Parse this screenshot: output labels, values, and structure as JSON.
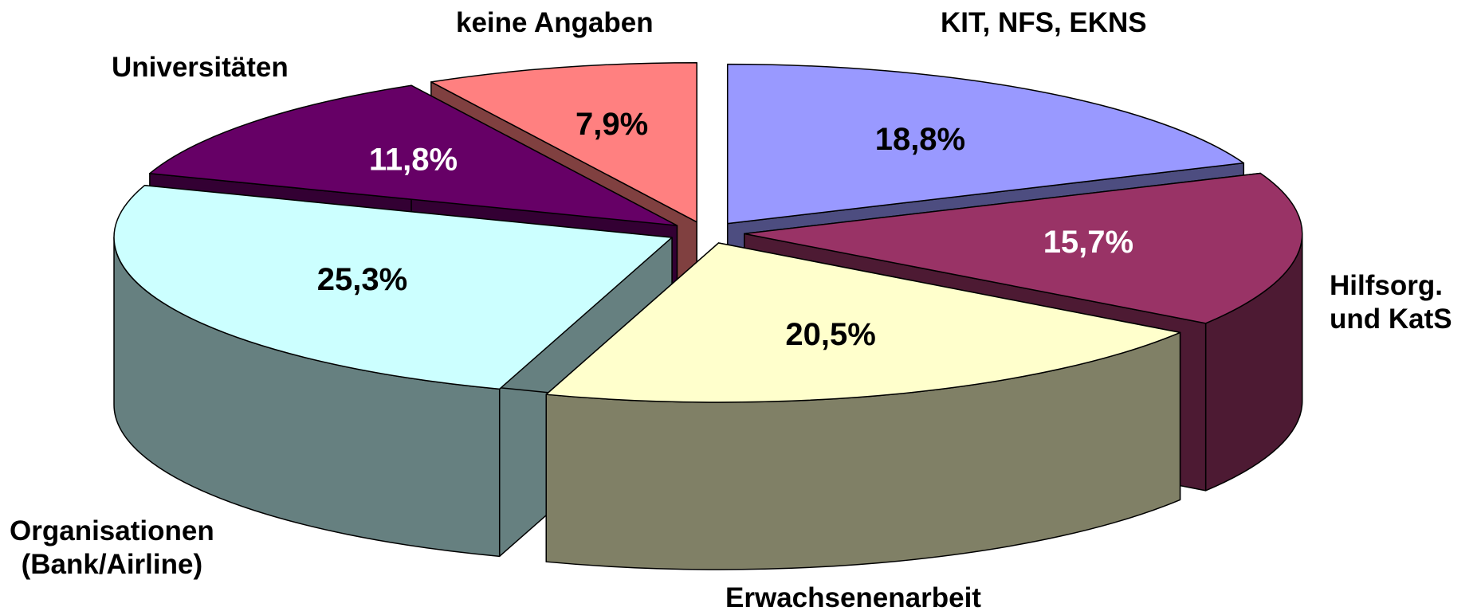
{
  "chart_data": {
    "type": "pie3d",
    "categories": [
      "KIT, NFS,  EKNS",
      "Hilfsorg.\nund KatS",
      "Erwachsenenarbeit",
      "Organisationen\n(Bank/Airline)",
      "Universitäten",
      "keine Angaben"
    ],
    "values": [
      18.8,
      15.7,
      20.5,
      25.3,
      11.8,
      7.9
    ],
    "value_labels": [
      "18,8%",
      "15,7%",
      "20,5%",
      "25,3%",
      "11,8%",
      "7,9%"
    ],
    "colors": [
      "#9999ff",
      "#993366",
      "#ffffcc",
      "#ccffff",
      "#660066",
      "#ff8080"
    ]
  }
}
